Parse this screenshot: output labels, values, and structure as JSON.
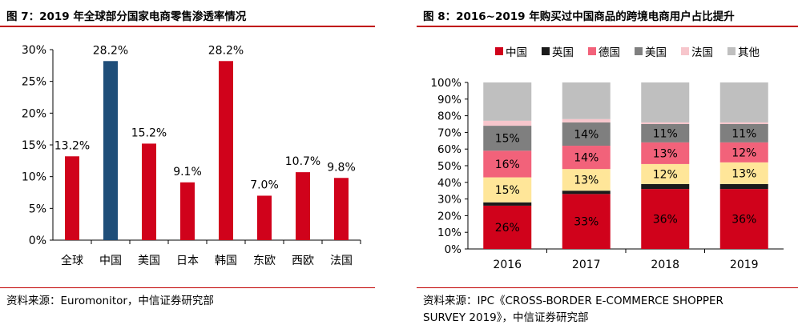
{
  "left": {
    "title": "图 7：2019 年全球部分国家电商零售渗透率情况",
    "source": "资料来源：Euromonitor，中信证券研究部",
    "chart_data": {
      "type": "bar",
      "title": "",
      "xlabel": "",
      "ylabel": "",
      "categories": [
        "全球",
        "中国",
        "美国",
        "日本",
        "韩国",
        "东欧",
        "西欧",
        "法国"
      ],
      "values": [
        13.2,
        28.2,
        15.2,
        9.1,
        28.2,
        7.0,
        10.7,
        9.8
      ],
      "data_labels": [
        "13.2%",
        "28.2%",
        "15.2%",
        "9.1%",
        "28.2%",
        "7.0%",
        "10.7%",
        "9.8%"
      ],
      "highlight_category": "中国",
      "ylim": [
        0,
        30
      ],
      "yticks": [
        0,
        5,
        10,
        15,
        20,
        25,
        30
      ],
      "ytick_labels": [
        "0%",
        "5%",
        "10%",
        "15%",
        "20%",
        "25%",
        "30%"
      ],
      "grid": false,
      "colors": {
        "bar": "#d0021b",
        "highlight": "#1f4e79"
      }
    }
  },
  "right": {
    "title": "图 8：2016~2019 年购买过中国商品的跨境电商用户占比提升",
    "source_line1": "资料来源：IPC《CROSS-BORDER E-COMMERCE SHOPPER",
    "source_line2": "SURVEY 2019》，中信证券研究部",
    "chart_data": {
      "type": "bar",
      "stacked": true,
      "title": "",
      "xlabel": "",
      "ylabel": "",
      "categories": [
        "2016",
        "2017",
        "2018",
        "2019"
      ],
      "ylim": [
        0,
        100
      ],
      "yticks": [
        0,
        10,
        20,
        30,
        40,
        50,
        60,
        70,
        80,
        90,
        100
      ],
      "ytick_labels": [
        "0%",
        "10%",
        "20%",
        "30%",
        "40%",
        "50%",
        "60%",
        "70%",
        "80%",
        "90%",
        "100%"
      ],
      "grid": false,
      "legend_position": "top",
      "series": [
        {
          "name": "中国",
          "color": "#d0021b",
          "values": [
            26,
            33,
            36,
            36
          ],
          "labels": [
            "26%",
            "33%",
            "36%",
            "36%"
          ]
        },
        {
          "name": "英国",
          "color": "#1a1a1a",
          "values": [
            2,
            2,
            3,
            3
          ],
          "labels": [
            "",
            "",
            "",
            ""
          ]
        },
        {
          "name": "",
          "color": "#ffe699",
          "values": [
            15,
            13,
            12,
            13
          ],
          "labels": [
            "15%",
            "13%",
            "12%",
            "13%"
          ]
        },
        {
          "name": "德国",
          "color": "#f2627a",
          "values": [
            16,
            14,
            13,
            12
          ],
          "labels": [
            "16%",
            "14%",
            "13%",
            "12%"
          ]
        },
        {
          "name": "美国",
          "color": "#7f7f7f",
          "values": [
            15,
            14,
            11,
            11
          ],
          "labels": [
            "15%",
            "14%",
            "11%",
            "11%"
          ]
        },
        {
          "name": "法国",
          "color": "#f7c6cc",
          "values": [
            3,
            2,
            1,
            1
          ],
          "labels": [
            "",
            "",
            "",
            ""
          ]
        },
        {
          "name": "其他",
          "color": "#bfbfbf",
          "values": [
            23,
            22,
            24,
            24
          ],
          "labels": [
            "",
            "",
            "",
            ""
          ]
        }
      ]
    }
  }
}
